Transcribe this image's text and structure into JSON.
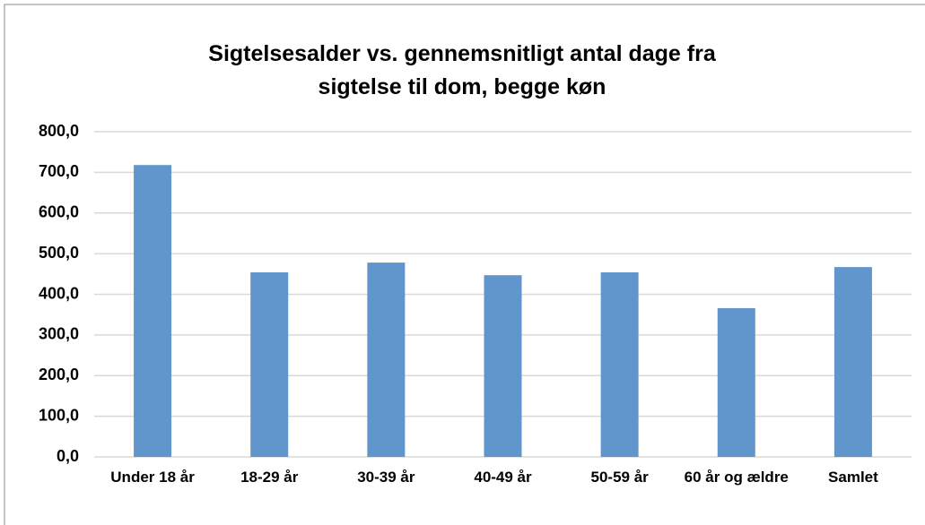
{
  "chart_data": {
    "type": "bar",
    "title": "Sigtelsesalder vs. gennemsnitligt antal dage fra sigtelse til dom, begge køn",
    "categories": [
      "Under 18 år",
      "18-29 år",
      "30-39 år",
      "40-49 år",
      "50-59 år",
      "60 år og ældre",
      "Samlet"
    ],
    "values": [
      718,
      454,
      478,
      447,
      454,
      366,
      467
    ],
    "color": "#6096cc",
    "ylim": [
      0,
      800
    ],
    "yticks": [
      {
        "value": 0,
        "label": "0,0"
      },
      {
        "value": 100,
        "label": "100,0"
      },
      {
        "value": 200,
        "label": "200,0"
      },
      {
        "value": 300,
        "label": "300,0"
      },
      {
        "value": 400,
        "label": "400,0"
      },
      {
        "value": 500,
        "label": "500,0"
      },
      {
        "value": 600,
        "label": "600,0"
      },
      {
        "value": 700,
        "label": "700,0"
      },
      {
        "value": 800,
        "label": "800,0"
      }
    ],
    "grid": true
  }
}
